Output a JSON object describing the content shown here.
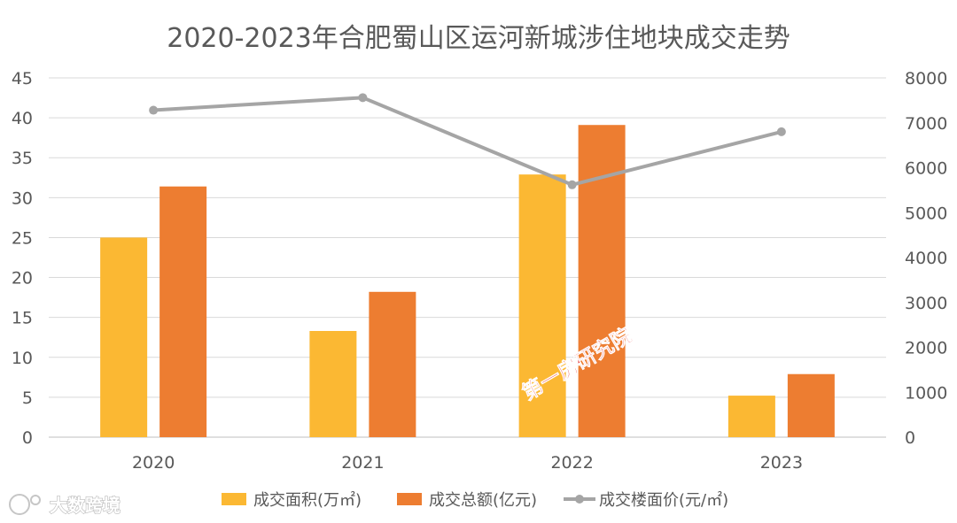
{
  "chart_data": {
    "type": "bar",
    "title": "2020-2023年合肥蜀山区运河新城涉住地块成交走势",
    "categories": [
      "2020",
      "2021",
      "2022",
      "2023"
    ],
    "series": [
      {
        "name": "成交面积(万㎡)",
        "type": "bar",
        "axis": "left",
        "color": "#FBB833",
        "values": [
          25.0,
          13.3,
          32.9,
          5.2
        ]
      },
      {
        "name": "成交总额(亿元)",
        "type": "bar",
        "axis": "left",
        "color": "#ED7D31",
        "values": [
          31.4,
          18.2,
          39.1,
          7.9
        ]
      },
      {
        "name": "成交楼面价(元/㎡)",
        "type": "line",
        "axis": "right",
        "color": "#A5A5A5",
        "values": [
          7280,
          7560,
          5620,
          6800
        ]
      }
    ],
    "ylim_left": [
      0,
      45
    ],
    "yticks_left": [
      "0",
      "5",
      "10",
      "15",
      "20",
      "25",
      "30",
      "35",
      "40",
      "45"
    ],
    "ylim_right": [
      0,
      8000
    ],
    "yticks_right": [
      "0",
      "1000",
      "2000",
      "3000",
      "4000",
      "5000",
      "6000",
      "7000",
      "8000"
    ],
    "grid": true,
    "legend_position": "bottom",
    "colors": {
      "grid": "#d9d9d9",
      "axis": "#bfbfbf",
      "text": "#595959"
    }
  },
  "watermark": {
    "text": "第一房研究院",
    "color": "#e11f1f"
  },
  "brand": {
    "text": "大数跨境",
    "icon": "brand-logo-icon"
  }
}
